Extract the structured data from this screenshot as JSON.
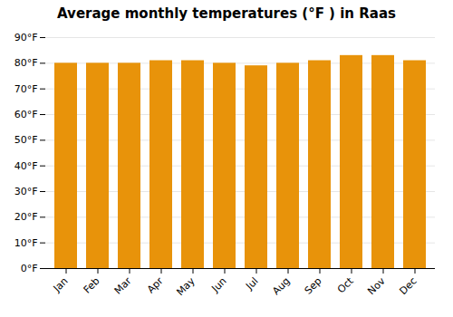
{
  "chart_data": {
    "type": "bar",
    "title": "Average monthly temperatures (°F ) in Raas",
    "categories": [
      "Jan",
      "Feb",
      "Mar",
      "Apr",
      "May",
      "Jun",
      "Jul",
      "Aug",
      "Sep",
      "Oct",
      "Nov",
      "Dec"
    ],
    "values": [
      80,
      80,
      80,
      81,
      81,
      80,
      79,
      80,
      81,
      83,
      83,
      81
    ],
    "color": "#E8930A",
    "ylim": [
      0,
      90
    ],
    "yticks": [
      {
        "value": 0,
        "label": "0°F"
      },
      {
        "value": 10,
        "label": "10°F"
      },
      {
        "value": 20,
        "label": "20°F"
      },
      {
        "value": 30,
        "label": "30°F"
      },
      {
        "value": 40,
        "label": "40°F"
      },
      {
        "value": 50,
        "label": "50°F"
      },
      {
        "value": 60,
        "label": "60°F"
      },
      {
        "value": 70,
        "label": "70°F"
      },
      {
        "value": 80,
        "label": "80°F"
      },
      {
        "value": 90,
        "label": "90°F"
      }
    ],
    "grid": true
  }
}
